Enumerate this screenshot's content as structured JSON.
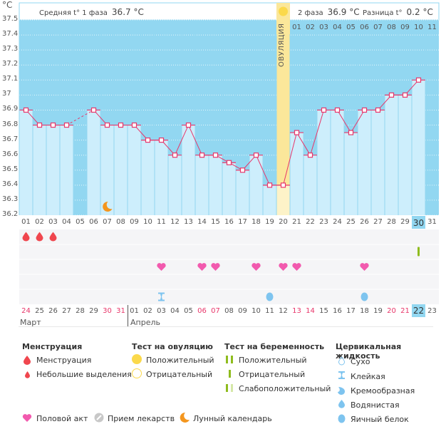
{
  "header": {
    "unit": "°C",
    "phase1_label": "Средняя t° 1 фаза",
    "phase1_value": "36.7 °C",
    "phase2_label": "2 фаза",
    "phase2_value": "36.9 °C",
    "diff_label": "Разница t°",
    "diff_value": "0.2 °C",
    "ovulation_label": "ОВУЛЯЦИЯ"
  },
  "colors": {
    "phase_bg": "#92d7f1",
    "bar": "#cdeefc",
    "line": "#e8366a",
    "ovulation": "#fbe79a",
    "menstruation": "#f0464e",
    "heart": "#f25aae",
    "cervical": "#7ec4ef",
    "pregnancy": "#8fbc1e"
  },
  "chart_data": {
    "type": "line",
    "title": "",
    "xlabel": "",
    "ylabel": "°C",
    "ylim": [
      36.2,
      37.5
    ],
    "yticks": [
      "37.5",
      "37.4",
      "37.3",
      "37.2",
      "37.1",
      "37",
      "36.9",
      "36.8",
      "36.7",
      "36.6",
      "36.5",
      "36.4",
      "36.3",
      "36.2"
    ],
    "cycle_days": [
      "01",
      "02",
      "03",
      "04",
      "05",
      "06",
      "07",
      "08",
      "09",
      "10",
      "11",
      "12",
      "13",
      "14",
      "15",
      "16",
      "17",
      "18",
      "19",
      "20",
      "21",
      "22",
      "23",
      "24",
      "25",
      "26",
      "27",
      "28",
      "29",
      "30",
      "31"
    ],
    "phase2_days": [
      "01",
      "02",
      "03",
      "04",
      "05",
      "06",
      "07",
      "08",
      "09",
      "10",
      "11"
    ],
    "values": [
      36.9,
      36.8,
      36.8,
      36.8,
      null,
      36.9,
      36.8,
      36.8,
      36.8,
      36.7,
      36.7,
      36.6,
      36.8,
      36.6,
      36.6,
      36.55,
      36.5,
      36.6,
      36.4,
      36.4,
      36.75,
      36.6,
      36.9,
      36.9,
      36.75,
      36.9,
      36.9,
      37.0,
      37.0,
      37.1,
      null
    ],
    "ovulation_day": "20",
    "selected_day": "30",
    "grid": true
  },
  "calendar": {
    "dates": [
      "24",
      "25",
      "26",
      "27",
      "28",
      "29",
      "30",
      "31",
      "01",
      "02",
      "03",
      "04",
      "05",
      "06",
      "07",
      "08",
      "09",
      "10",
      "11",
      "12",
      "13",
      "14",
      "15",
      "16",
      "17",
      "18",
      "19",
      "20",
      "21",
      "22",
      "23"
    ],
    "weekend_flags": [
      true,
      false,
      false,
      false,
      false,
      false,
      true,
      true,
      false,
      false,
      false,
      false,
      false,
      true,
      true,
      false,
      false,
      false,
      false,
      false,
      true,
      true,
      false,
      false,
      false,
      false,
      false,
      true,
      true,
      false,
      false
    ],
    "months": [
      {
        "label": "Март"
      },
      {
        "label": "Апрель"
      }
    ],
    "selected_date": "22",
    "menstruation_days": [
      1,
      2,
      3
    ],
    "pregnancy_test_negative_days": [
      30
    ],
    "intercourse_days": [
      11,
      14,
      15,
      18,
      20,
      21,
      26
    ],
    "cervical_sticky_days": [
      11
    ],
    "cervical_eggwhite_days": [
      19,
      26
    ],
    "moon_days": [
      7
    ]
  },
  "legend": {
    "menstruation": {
      "title": "Менструация",
      "items": [
        "Менструация",
        "Небольшие выделения"
      ]
    },
    "ovulation_test": {
      "title": "Тест на овуляцию",
      "items": [
        "Положительный",
        "Отрицательный"
      ]
    },
    "pregnancy_test": {
      "title": "Тест на беременность",
      "items": [
        "Положительный",
        "Отрицательный",
        "Слабоположительный"
      ]
    },
    "cervical": {
      "title": "Цервикальная жидкость",
      "items": [
        "Сухо",
        "Клейкая",
        "Кремообразная",
        "Водянистая",
        "Яичный белок"
      ]
    },
    "other": [
      "Половой акт",
      "Прием лекарств",
      "Лунный календарь"
    ]
  }
}
